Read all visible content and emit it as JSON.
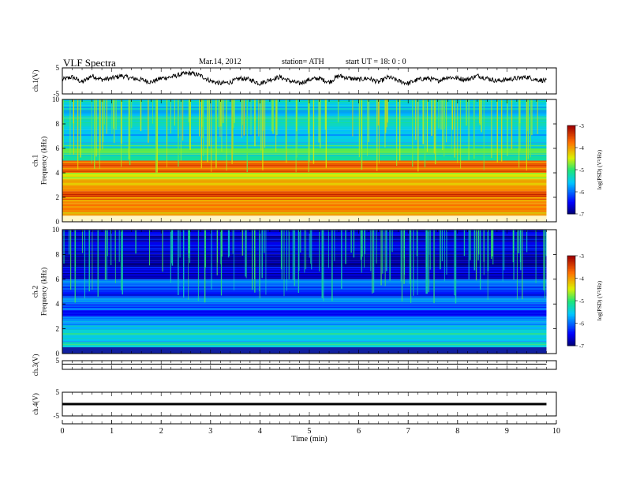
{
  "header": {
    "title": "VLF  Spectra",
    "date": "Mar.14, 2012",
    "station": "station= ATH",
    "start": "start  UT =    18: 0  : 0"
  },
  "chart_data": [
    {
      "type": "line",
      "panel": "ch1-waveform",
      "ylabel": "ch.1(V)",
      "ylim": [
        -5,
        5
      ],
      "yticks": [
        "5",
        "-5"
      ],
      "xlim": [
        0,
        10
      ],
      "note": "noisy waveform, approximate envelope",
      "x": [
        0,
        0.2,
        0.4,
        0.6,
        0.8,
        1.0,
        1.2,
        1.4,
        1.6,
        1.8,
        2.0,
        2.2,
        2.4,
        2.6,
        2.8,
        3.0,
        3.2,
        3.4,
        3.6,
        3.8,
        4.0,
        4.2,
        4.4,
        4.6,
        4.8,
        5.0,
        5.2,
        5.4,
        5.6,
        5.8,
        6.0,
        6.2,
        6.4,
        6.6,
        6.8,
        7.0,
        7.2,
        7.4,
        7.6,
        7.8,
        8.0,
        8.2,
        8.4,
        8.6,
        8.8,
        9.0,
        9.2,
        9.4,
        9.6,
        9.8
      ],
      "y": [
        0.5,
        1.5,
        -0.5,
        2.0,
        0.5,
        1.0,
        2.0,
        1.0,
        0.5,
        -0.5,
        1.0,
        1.5,
        2.5,
        3.0,
        2.0,
        0.0,
        -1.0,
        -0.5,
        1.0,
        0.5,
        -1.0,
        0.5,
        1.5,
        0.0,
        -1.0,
        0.5,
        1.0,
        -0.5,
        2.0,
        1.0,
        0.5,
        1.0,
        -0.5,
        1.5,
        0.0,
        -1.0,
        0.5,
        1.0,
        0.0,
        1.5,
        1.0,
        0.5,
        2.0,
        1.0,
        0.0,
        0.5,
        1.0,
        1.5,
        0.5,
        0.0
      ]
    },
    {
      "type": "heatmap",
      "panel": "ch1-spectrogram",
      "ylabel": "ch.1\nFrequency  (kHz)",
      "ylim": [
        0,
        10
      ],
      "yticks": [
        "0",
        "2",
        "4",
        "6",
        "8",
        "10"
      ],
      "xlim": [
        0,
        10
      ],
      "colorbar_label": "log(PSD) (V²/Hz)",
      "colorbar_ticks": [
        "-3",
        "-4",
        "-5",
        "-6",
        "-7"
      ],
      "colorscale_range": [
        -7,
        -3
      ],
      "band_edges_khz": [
        0.5,
        1.0,
        1.5,
        2.0,
        2.5,
        3.0,
        3.5,
        4.0,
        4.5,
        5.0,
        5.5,
        6.0,
        6.5,
        7.0,
        7.5,
        8.0,
        8.5,
        9.0,
        9.5,
        10.0
      ],
      "band_values": [
        -3.6,
        -4.0,
        -3.8,
        -3.9,
        -3.6,
        -3.9,
        -4.2,
        -4.4,
        -3.8,
        -3.7,
        -5.2,
        -4.8,
        -5.3,
        -5.5,
        -5.6,
        -5.4,
        -5.3,
        -5.5,
        -5.4,
        -5.5
      ]
    },
    {
      "type": "heatmap",
      "panel": "ch2-spectrogram",
      "ylabel": "ch.2\nFrequency  (kHz)",
      "ylim": [
        0,
        10
      ],
      "yticks": [
        "0",
        "2",
        "4",
        "6",
        "8",
        "10"
      ],
      "xlim": [
        0,
        10
      ],
      "colorbar_label": "log(PSD) (V²/Hz)",
      "colorbar_ticks": [
        "-3",
        "-4",
        "-5",
        "-6",
        "-7"
      ],
      "colorscale_range": [
        -7,
        -3
      ],
      "band_edges_khz": [
        0.5,
        1.0,
        1.5,
        2.0,
        2.5,
        3.0,
        3.5,
        4.0,
        4.5,
        5.0,
        5.5,
        6.0,
        6.5,
        7.0,
        7.5,
        8.0,
        8.5,
        9.0,
        9.5,
        10.0
      ],
      "band_values": [
        -6.8,
        -5.4,
        -5.6,
        -5.3,
        -5.7,
        -5.8,
        -6.5,
        -6.0,
        -5.9,
        -6.3,
        -6.1,
        -6.0,
        -6.6,
        -6.4,
        -6.9,
        -6.8,
        -6.6,
        -6.5,
        -6.7,
        -6.5
      ]
    },
    {
      "type": "line",
      "panel": "ch3-waveform",
      "ylabel": "ch.3(V)",
      "ylim": [
        -5,
        5
      ],
      "yticks": [
        "5"
      ],
      "xlim": [
        0,
        10
      ],
      "x": [
        0,
        9.8
      ],
      "y": [
        1.0,
        1.0
      ]
    },
    {
      "type": "line",
      "panel": "ch4-waveform",
      "ylabel": "ch.4(V)",
      "ylim": [
        -5,
        5
      ],
      "yticks": [
        "5",
        "-5"
      ],
      "xlim": [
        0,
        10
      ],
      "x": [
        0,
        9.8
      ],
      "y": [
        0.0,
        0.0
      ]
    }
  ],
  "xaxis": {
    "label": "Time  (min)",
    "ticks": [
      "0",
      "1",
      "2",
      "3",
      "4",
      "5",
      "6",
      "7",
      "8",
      "9",
      "10"
    ]
  }
}
